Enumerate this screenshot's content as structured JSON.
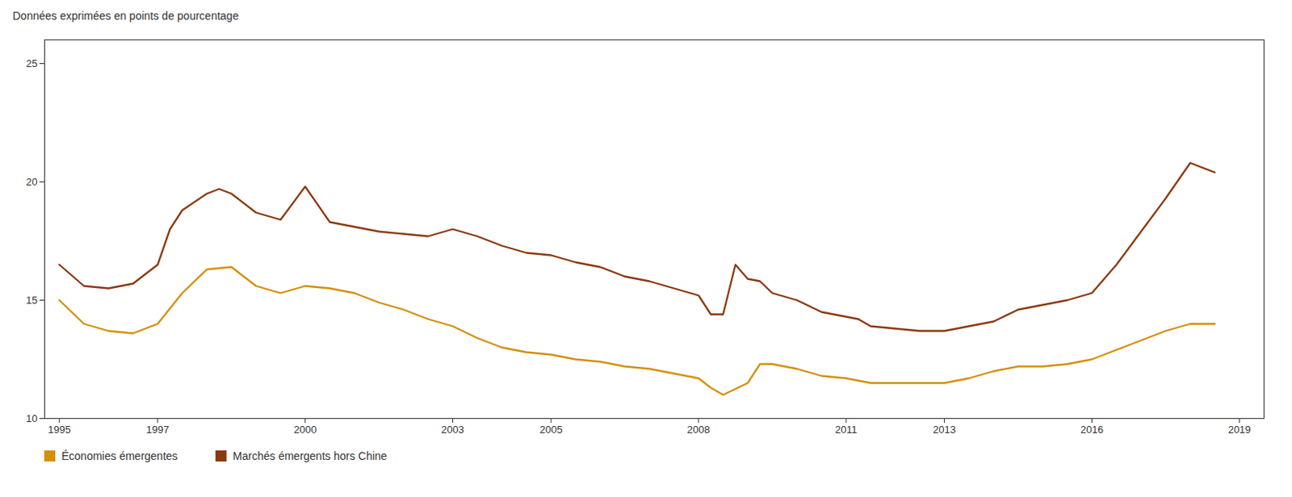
{
  "chart_data": {
    "type": "line",
    "subtitle": "Données exprimées en points de pourcentage",
    "xlim": [
      1994.7,
      2019.5
    ],
    "xticks": [
      1995,
      1997,
      2000,
      2003,
      2005,
      2008,
      2011,
      2013,
      2016,
      2019
    ],
    "ylim": [
      10,
      26
    ],
    "yticks": [
      10,
      15,
      20,
      25
    ],
    "grid": false,
    "legend": "bottom",
    "series": [
      {
        "name": "Économies émergentes",
        "color": "#D4900A",
        "x": [
          1995.0,
          1995.5,
          1996.0,
          1996.5,
          1997.0,
          1997.5,
          1998.0,
          1998.5,
          1999.0,
          1999.5,
          2000.0,
          2000.5,
          2001.0,
          2001.5,
          2002.0,
          2002.5,
          2003.0,
          2003.5,
          2004.0,
          2004.5,
          2005.0,
          2005.5,
          2006.0,
          2006.5,
          2007.0,
          2007.5,
          2008.0,
          2008.25,
          2008.5,
          2009.0,
          2009.25,
          2009.5,
          2010.0,
          2010.5,
          2011.0,
          2011.5,
          2012.0,
          2012.5,
          2013.0,
          2013.5,
          2014.0,
          2014.5,
          2015.0,
          2015.5,
          2016.0,
          2016.5,
          2017.0,
          2017.5,
          2018.0,
          2018.5
        ],
        "values": [
          15.0,
          14.0,
          13.7,
          13.6,
          14.0,
          15.3,
          16.3,
          16.4,
          15.6,
          15.3,
          15.6,
          15.5,
          15.3,
          14.9,
          14.6,
          14.2,
          13.9,
          13.4,
          13.0,
          12.8,
          12.7,
          12.5,
          12.4,
          12.2,
          12.1,
          11.9,
          11.7,
          11.3,
          11.0,
          11.5,
          12.3,
          12.3,
          12.1,
          11.8,
          11.7,
          11.5,
          11.5,
          11.5,
          11.5,
          11.7,
          12.0,
          12.2,
          12.2,
          12.3,
          12.5,
          12.9,
          13.3,
          13.7,
          14.0,
          14.0
        ]
      },
      {
        "name": "Marchés émergents hors Chine",
        "color": "#8B3A10",
        "x": [
          1995.0,
          1995.5,
          1996.0,
          1996.5,
          1997.0,
          1997.25,
          1997.5,
          1998.0,
          1998.25,
          1998.5,
          1999.0,
          1999.5,
          2000.0,
          2000.5,
          2001.0,
          2001.5,
          2002.0,
          2002.5,
          2003.0,
          2003.5,
          2004.0,
          2004.5,
          2005.0,
          2005.5,
          2006.0,
          2006.5,
          2007.0,
          2007.5,
          2008.0,
          2008.25,
          2008.5,
          2008.75,
          2009.0,
          2009.25,
          2009.5,
          2010.0,
          2010.5,
          2011.0,
          2011.25,
          2011.5,
          2012.0,
          2012.5,
          2013.0,
          2013.5,
          2014.0,
          2014.5,
          2015.0,
          2015.5,
          2016.0,
          2016.5,
          2017.0,
          2017.5,
          2018.0,
          2018.5
        ],
        "values": [
          16.5,
          15.6,
          15.5,
          15.7,
          16.5,
          18.0,
          18.8,
          19.5,
          19.7,
          19.5,
          18.7,
          18.4,
          19.8,
          18.3,
          18.1,
          17.9,
          17.8,
          17.7,
          18.0,
          17.7,
          17.3,
          17.0,
          16.9,
          16.6,
          16.4,
          16.0,
          15.8,
          15.5,
          15.2,
          14.4,
          14.4,
          16.5,
          15.9,
          15.8,
          15.3,
          15.0,
          14.5,
          14.3,
          14.2,
          13.9,
          13.8,
          13.7,
          13.7,
          13.9,
          14.1,
          14.6,
          14.8,
          15.0,
          15.3,
          16.5,
          17.9,
          19.3,
          20.8,
          20.4
        ]
      }
    ]
  }
}
